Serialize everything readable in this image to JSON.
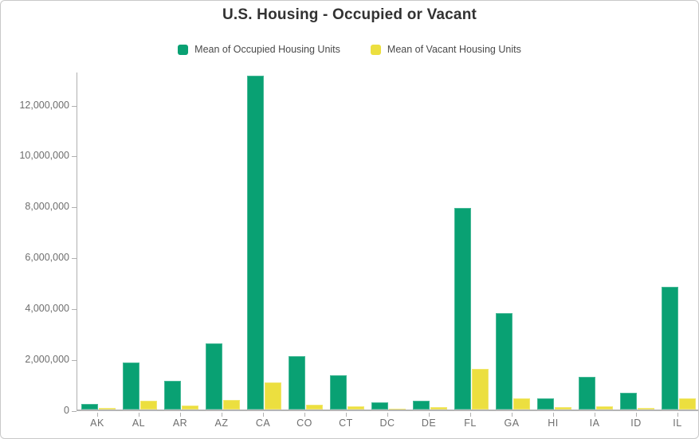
{
  "header": {
    "title": "U.S. Housing - Occupied or Vacant"
  },
  "legend": {
    "items": [
      {
        "label": "Mean of Occupied Housing Units"
      },
      {
        "label": "Mean of Vacant Housing Units"
      }
    ]
  },
  "colors": {
    "occupied": "#09a173",
    "vacant": "#ecdf3f",
    "axis_line": "#b5b5b5",
    "axis_text": "#6e6e6e",
    "title_text": "#323232"
  },
  "chart_data": {
    "type": "bar",
    "title": "U.S. Housing - Occupied or Vacant",
    "xlabel": "",
    "ylabel": "",
    "grid": false,
    "legend_position": "top",
    "ylim": [
      0,
      13300000
    ],
    "yticks": [
      0,
      2000000,
      4000000,
      6000000,
      8000000,
      10000000,
      12000000
    ],
    "categories": [
      "AK",
      "AL",
      "AR",
      "AZ",
      "CA",
      "CO",
      "CT",
      "DC",
      "DE",
      "FL",
      "GA",
      "HI",
      "IA",
      "ID",
      "IL"
    ],
    "series": [
      {
        "name": "Mean of Occupied Housing Units",
        "color": "#09a173",
        "values": [
          230000,
          1850000,
          1130000,
          2590000,
          13100000,
          2110000,
          1350000,
          280000,
          360000,
          7920000,
          3790000,
          440000,
          1270000,
          650000,
          4830000
        ]
      },
      {
        "name": "Mean of Vacant Housing Units",
        "color": "#ecdf3f",
        "values": [
          60000,
          350000,
          170000,
          370000,
          1080000,
          190000,
          130000,
          30000,
          90000,
          1600000,
          450000,
          90000,
          125000,
          60000,
          450000
        ]
      }
    ]
  }
}
